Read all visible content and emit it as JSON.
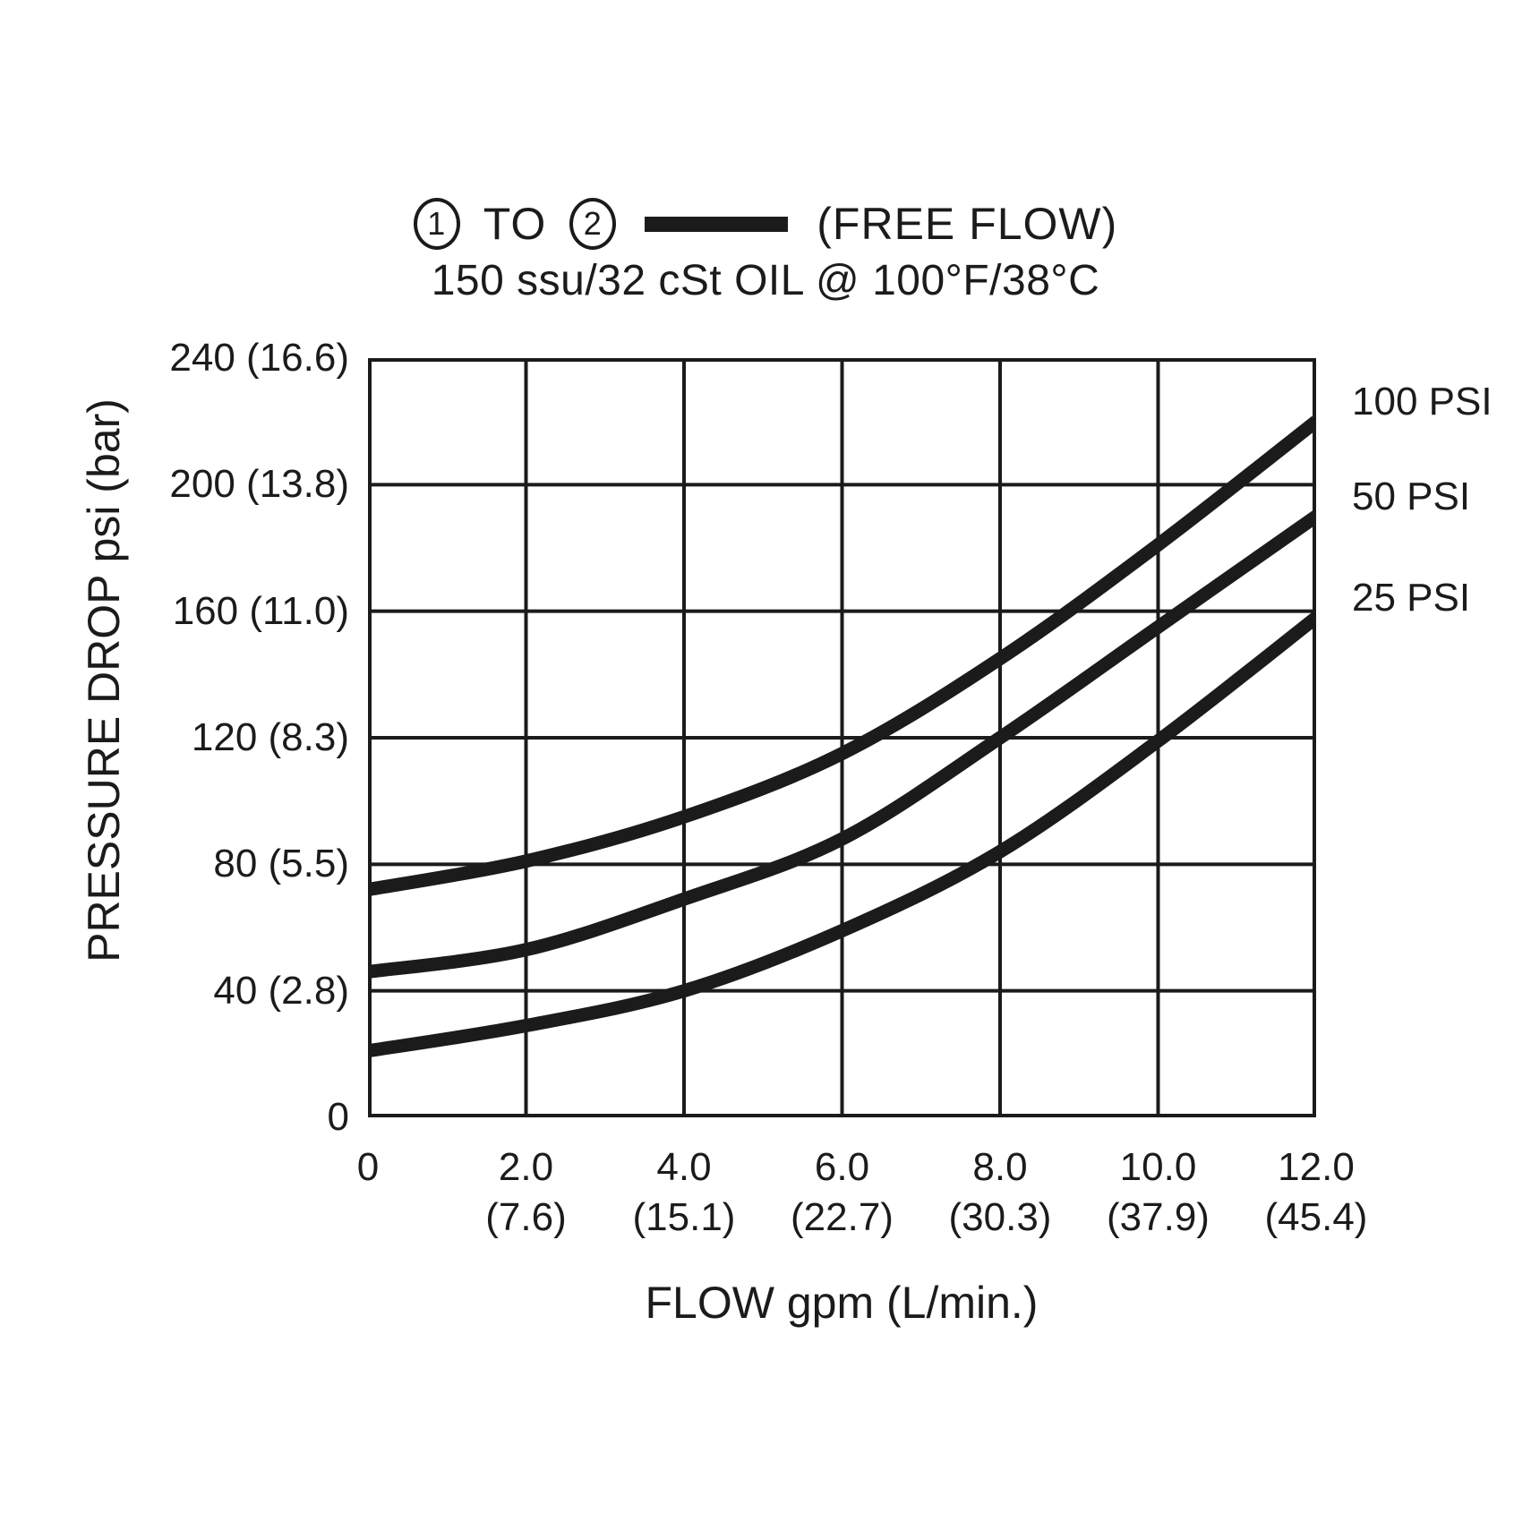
{
  "chart_data": {
    "type": "line",
    "legend": {
      "port_from": "1",
      "to_text": "TO",
      "port_to": "2",
      "suffix": "(FREE FLOW)"
    },
    "subtitle": "150 ssu/32 cSt OIL @ 100°F/38°C",
    "xlabel": "FLOW gpm (L/min.)",
    "ylabel": "PRESSURE DROP psi (bar)",
    "xlim": [
      0,
      12
    ],
    "ylim": [
      0,
      240
    ],
    "grid": true,
    "legend_position": "right",
    "x": [
      0,
      2,
      4,
      6,
      8,
      10,
      12
    ],
    "x_ticks": [
      {
        "v": 0,
        "line1": "0",
        "line2": ""
      },
      {
        "v": 2,
        "line1": "2.0",
        "line2": "(7.6)"
      },
      {
        "v": 4,
        "line1": "4.0",
        "line2": "(15.1)"
      },
      {
        "v": 6,
        "line1": "6.0",
        "line2": "(22.7)"
      },
      {
        "v": 8,
        "line1": "8.0",
        "line2": "(30.3)"
      },
      {
        "v": 10,
        "line1": "10.0",
        "line2": "(37.9)"
      },
      {
        "v": 12,
        "line1": "12.0",
        "line2": "(45.4)"
      }
    ],
    "y_ticks": [
      {
        "v": 240,
        "label": "240 (16.6)"
      },
      {
        "v": 200,
        "label": "200 (13.8)"
      },
      {
        "v": 160,
        "label": "160 (11.0)"
      },
      {
        "v": 120,
        "label": "120 (8.3)"
      },
      {
        "v": 80,
        "label": "80 (5.5)"
      },
      {
        "v": 40,
        "label": "40 (2.8)"
      },
      {
        "v": 0,
        "label": "0"
      }
    ],
    "series": [
      {
        "name": "100 PSI",
        "values": [
          72,
          81,
          95,
          115,
          145,
          181,
          220
        ]
      },
      {
        "name": "50 PSI",
        "values": [
          46,
          53,
          69,
          88,
          120,
          155,
          190
        ]
      },
      {
        "name": "25 PSI",
        "values": [
          21,
          29,
          40,
          59,
          84,
          119,
          158
        ]
      }
    ],
    "colors": {
      "line": "#1b1b1b",
      "grid": "#1b1b1b",
      "text": "#1b1b1b",
      "background": "#ffffff"
    }
  }
}
